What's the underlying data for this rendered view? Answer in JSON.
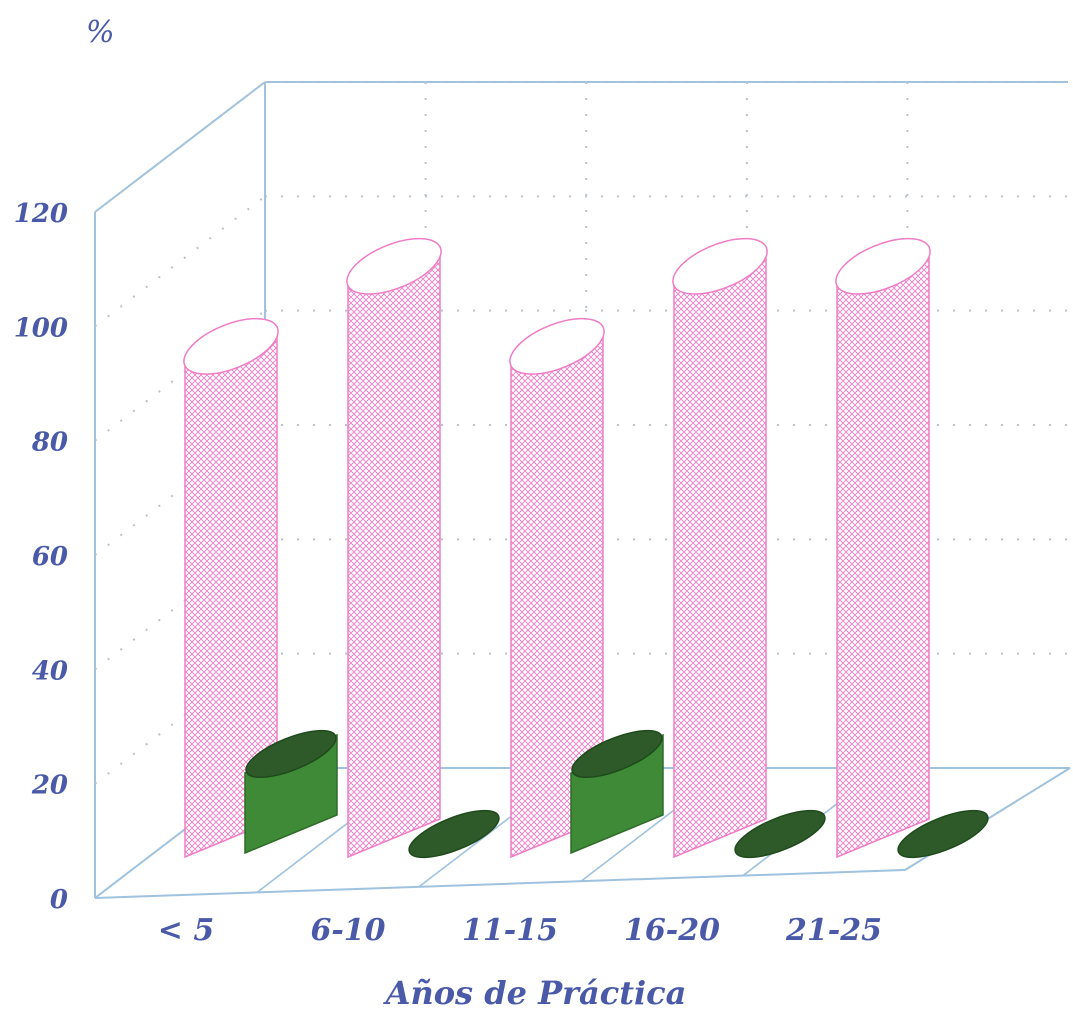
{
  "chart_data": {
    "type": "bar",
    "title": "",
    "xlabel": "Años de Práctica",
    "ylabel": "%",
    "ylim": [
      0,
      120
    ],
    "yticks": [
      0,
      20,
      40,
      60,
      80,
      100,
      120
    ],
    "categories": [
      "< 5",
      "6-10",
      "11-15",
      "16-20",
      "21-25"
    ],
    "series": [
      {
        "values": [
          86,
          100,
          86,
          100,
          100
        ],
        "color": "#f2b6dc"
      },
      {
        "values": [
          14,
          0,
          14,
          0,
          0
        ],
        "color": "#3e8a36"
      }
    ],
    "grid": true,
    "style": "3d-cylinder"
  }
}
